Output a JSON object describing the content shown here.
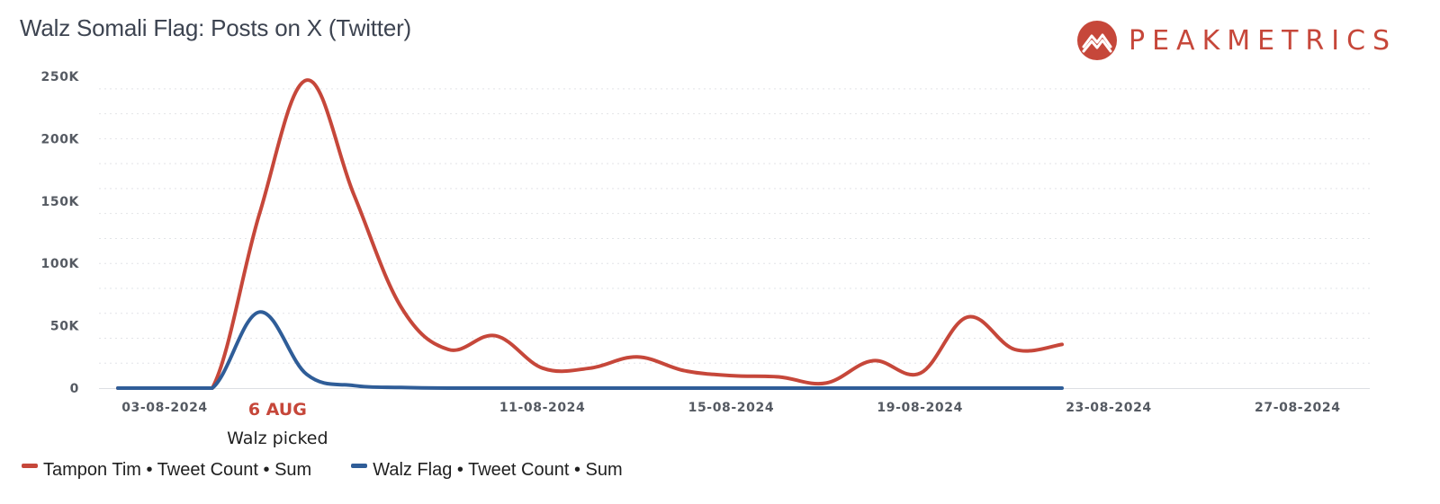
{
  "header": {
    "title": "Walz Somali Flag: Posts on X (Twitter)"
  },
  "logo": {
    "text": "PEAKMETRICS",
    "icon": "mountain-peak-icon",
    "color": "#c6473a"
  },
  "chart_data": {
    "type": "line",
    "title": "Walz Somali Flag: Posts on X (Twitter)",
    "xlabel": "",
    "ylabel": "",
    "ylim": [
      0,
      250000
    ],
    "xlim": [
      "2024-08-03",
      "2024-08-29"
    ],
    "x_ticks": [
      "03-08-2024",
      "11-08-2024",
      "15-08-2024",
      "19-08-2024",
      "23-08-2024",
      "27-08-2024"
    ],
    "x_tick_dates": [
      "2024-08-03",
      "2024-08-11",
      "2024-08-15",
      "2024-08-19",
      "2024-08-23",
      "2024-08-27"
    ],
    "y_ticks": [
      0,
      50000,
      100000,
      150000,
      200000,
      250000
    ],
    "y_tick_labels": [
      "0",
      "50K",
      "100K",
      "150K",
      "200K",
      "250K"
    ],
    "grid": "horizontal dotted",
    "legend_position": "bottom-left",
    "series": [
      {
        "name": "Tampon Tim • Tweet Count • Sum",
        "color": "#c6473a",
        "points": [
          [
            "2024-08-03",
            0
          ],
          [
            "2024-08-04",
            0
          ],
          [
            "2024-08-05",
            0
          ],
          [
            "2024-08-06",
            140000
          ],
          [
            "2024-08-07",
            247000
          ],
          [
            "2024-08-08",
            155000
          ],
          [
            "2024-08-09",
            65000
          ],
          [
            "2024-08-10",
            31000
          ],
          [
            "2024-08-11",
            42000
          ],
          [
            "2024-08-12",
            16000
          ],
          [
            "2024-08-13",
            16000
          ],
          [
            "2024-08-14",
            25000
          ],
          [
            "2024-08-15",
            14000
          ],
          [
            "2024-08-16",
            10000
          ],
          [
            "2024-08-17",
            9000
          ],
          [
            "2024-08-18",
            4000
          ],
          [
            "2024-08-19",
            22000
          ],
          [
            "2024-08-20",
            12000
          ],
          [
            "2024-08-21",
            57000
          ],
          [
            "2024-08-22",
            31000
          ],
          [
            "2024-08-23",
            35000
          ]
        ]
      },
      {
        "name": "Walz Flag • Tweet Count • Sum",
        "color": "#2f5d98",
        "points": [
          [
            "2024-08-03",
            0
          ],
          [
            "2024-08-04",
            0
          ],
          [
            "2024-08-05",
            0
          ],
          [
            "2024-08-06",
            61000
          ],
          [
            "2024-08-07",
            11000
          ],
          [
            "2024-08-08",
            2000
          ],
          [
            "2024-08-09",
            500
          ],
          [
            "2024-08-10",
            0
          ],
          [
            "2024-08-11",
            0
          ],
          [
            "2024-08-12",
            0
          ],
          [
            "2024-08-13",
            0
          ],
          [
            "2024-08-14",
            0
          ],
          [
            "2024-08-15",
            0
          ],
          [
            "2024-08-16",
            0
          ],
          [
            "2024-08-17",
            0
          ],
          [
            "2024-08-18",
            0
          ],
          [
            "2024-08-19",
            0
          ],
          [
            "2024-08-20",
            0
          ],
          [
            "2024-08-21",
            0
          ],
          [
            "2024-08-22",
            0
          ],
          [
            "2024-08-23",
            0
          ]
        ]
      }
    ],
    "annotation": {
      "date": "2024-08-06",
      "label": "6 AUG",
      "text": "Walz picked"
    }
  }
}
